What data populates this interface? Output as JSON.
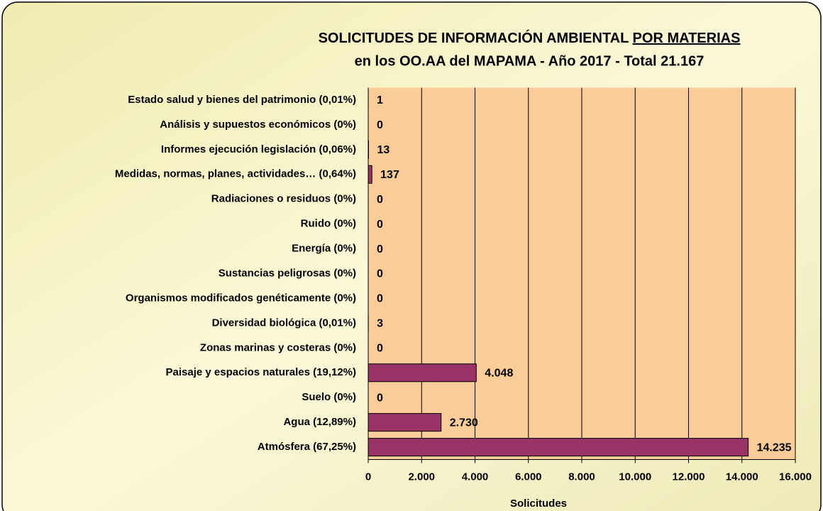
{
  "chart_data": {
    "type": "bar",
    "orientation": "horizontal",
    "title": [
      "SOLICITUDES DE INFORMACIÓN AMBIENTAL",
      "POR MATERIAS"
    ],
    "subtitle": "en los OO.AA  del MAPAMA - Año 2017 - Total  21.167",
    "xlabel": "Solicitudes",
    "categories": [
      "Estado salud y bienes del patrimonio  (0,01%)",
      "Análisis y supuestos económicos  (0%)",
      "Informes  ejecución legislación  (0,06%)",
      "Medidas, normas, planes, actividades…  (0,64%)",
      "Radiaciones o residuos  (0%)",
      "Ruido  (0%)",
      "Energía  (0%)",
      "Sustancias peligrosas  (0%)",
      "Organismos modificados genéticamente  (0%)",
      "Diversidad biológica  (0,01%)",
      "Zonas marinas y costeras  (0%)",
      "Paisaje y espacios naturales  (19,12%)",
      "Suelo  (0%)",
      "Agua  (12,89%)",
      "Atmósfera  (67,25%)"
    ],
    "values": [
      1,
      0,
      13,
      137,
      0,
      0,
      0,
      0,
      0,
      3,
      0,
      4048,
      0,
      2730,
      14235
    ],
    "value_labels": [
      "1",
      "0",
      "13",
      "137",
      "0",
      "0",
      "0",
      "0",
      "0",
      "3",
      "0",
      "4.048",
      "0",
      "2.730",
      "14.235"
    ],
    "color": "#993366",
    "plot_background": "#fccc99",
    "xlim": [
      0,
      16000
    ],
    "xticks": [
      0,
      {
        "value": 2000,
        "label": "2.000"
      },
      {
        "value": 4000,
        "label": "4.000"
      },
      {
        "value": 6000,
        "label": "6.000"
      },
      {
        "value": 8000,
        "label": "8.000"
      },
      {
        "value": 10000,
        "label": "10.000"
      },
      {
        "value": 12000,
        "label": "12.000"
      },
      {
        "value": 14000,
        "label": "14.000"
      },
      {
        "value": 16000,
        "label": "16.000"
      }
    ],
    "grid": true
  }
}
